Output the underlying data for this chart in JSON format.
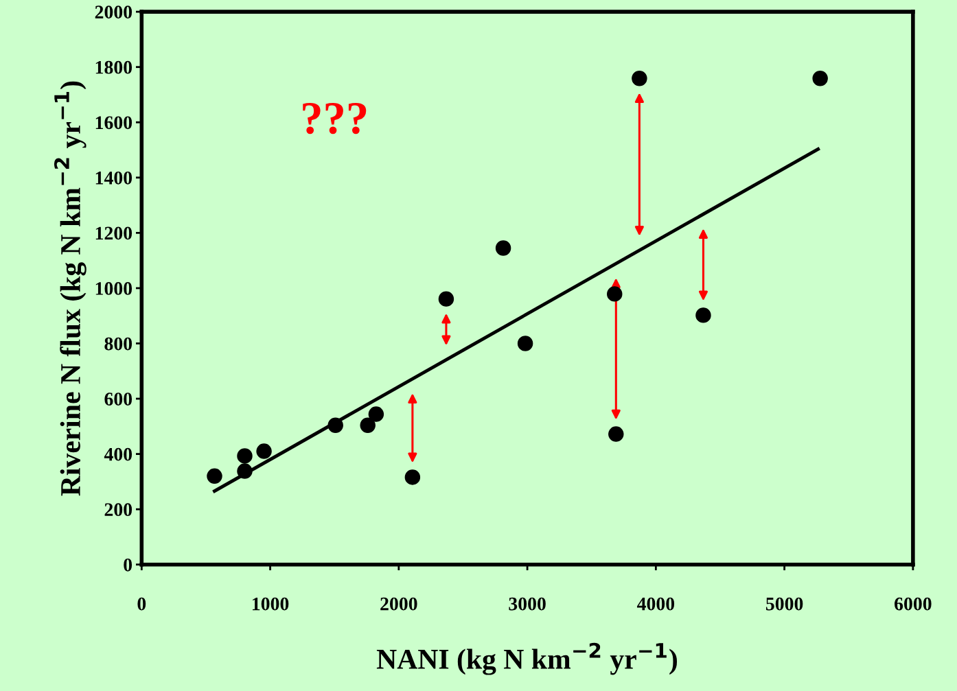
{
  "chart_data": {
    "type": "scatter",
    "xlabel": "NANI (kg N km$^{−2}$ yr$^{−1}$)",
    "ylabel": "Riverine N flux (kg N km$^{−2}$ yr$^{−1}$)",
    "annotations": [
      "???"
    ],
    "series": [
      {
        "color": "#000000",
        "marker": "circle",
        "x": [
          567,
          802,
          802,
          952,
          1508,
          1759,
          1824,
          2107,
          2369,
          2813,
          2984,
          3679,
          3690,
          3872,
          4369,
          5278
        ],
        "values": [
          320,
          393,
          338,
          410,
          504,
          504,
          544,
          316,
          961,
          1145,
          800,
          979,
          472,
          1759,
          902,
          1759
        ]
      },
      {
        "type": "line",
        "color": "#000000",
        "x": [
          567,
          5262
        ],
        "values": [
          266,
          1503
        ]
      }
    ],
    "xlim": [
      0,
      6000
    ],
    "xticks": [
      0,
      1000,
      2000,
      3000,
      4000,
      5000,
      6000
    ],
    "ylim": [
      0,
      2000
    ],
    "yticks": [
      0,
      200,
      400,
      600,
      800,
      1000,
      1200,
      1400,
      1600,
      1800,
      2000
    ],
    "grid": false
  }
}
